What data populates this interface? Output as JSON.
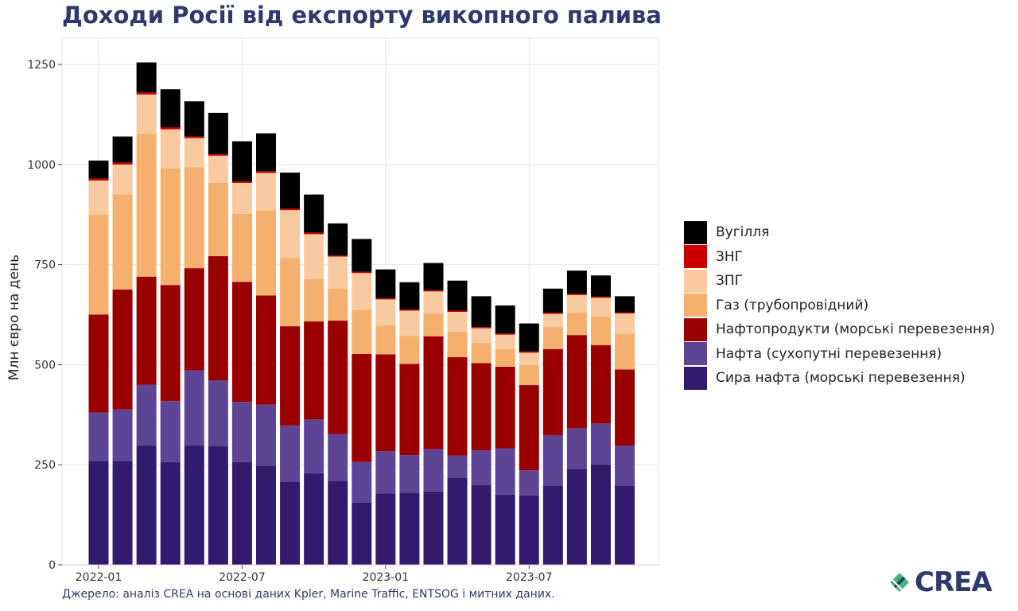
{
  "page": {
    "title": "Доходи Росії від експорту викопного палива",
    "source": "Джерело: аналіз CREA на основі даних Kpler, Marine Traffic, ENTSOG і митних даних.",
    "logo_text": "CREA"
  },
  "colors": {
    "title": "#2d3a6e",
    "grid": "#e6e6e6",
    "logo_green": "#3fb87a",
    "logo_navy": "#2d3a6e"
  },
  "chart_data": {
    "type": "bar",
    "stacked": true,
    "ylabel": "Млн євро на день",
    "xlabel": "",
    "ylim": [
      0,
      1250
    ],
    "yticks": [
      0,
      250,
      500,
      750,
      1000,
      1250
    ],
    "xtick_labels": [
      "2022-01",
      "2022-07",
      "2023-01",
      "2023-07"
    ],
    "xtick_months": [
      1,
      7,
      13,
      19
    ],
    "grid": true,
    "legend_position": "right",
    "categories": [
      "2022-01",
      "2022-02",
      "2022-03",
      "2022-04",
      "2022-05",
      "2022-06",
      "2022-07",
      "2022-08",
      "2022-09",
      "2022-10",
      "2022-11",
      "2022-12",
      "2023-01",
      "2023-02",
      "2023-03",
      "2023-04",
      "2023-05",
      "2023-06",
      "2023-07",
      "2023-08",
      "2023-09",
      "2023-10",
      "2023-11"
    ],
    "series": [
      {
        "name": "Сира нафта (морські перевезення)",
        "color": "#341a6e",
        "values": [
          260,
          260,
          298,
          257,
          298,
          296,
          257,
          248,
          208,
          229,
          210,
          155,
          178,
          180,
          183,
          218,
          200,
          175,
          173,
          198,
          240,
          251,
          198
        ]
      },
      {
        "name": "Нафта (сухопутні перевезення)",
        "color": "#5e4494",
        "values": [
          120,
          128,
          152,
          152,
          188,
          165,
          150,
          152,
          140,
          134,
          117,
          102,
          106,
          94,
          106,
          55,
          86,
          116,
          63,
          126,
          101,
          102,
          100
        ]
      },
      {
        "name": "Нафтопродукти (морські перевезення)",
        "color": "#9b0000",
        "values": [
          245,
          300,
          270,
          290,
          255,
          310,
          300,
          273,
          248,
          245,
          283,
          270,
          242,
          228,
          282,
          246,
          218,
          204,
          213,
          215,
          233,
          196,
          190
        ]
      },
      {
        "name": "Газ (трубопровідний)",
        "color": "#f5b06e",
        "values": [
          250,
          237,
          357,
          292,
          252,
          183,
          170,
          213,
          170,
          106,
          80,
          110,
          72,
          70,
          57,
          63,
          50,
          44,
          50,
          55,
          56,
          71,
          90
        ]
      },
      {
        "name": "ЗПГ",
        "color": "#f9c9a0",
        "values": [
          85,
          75,
          98,
          97,
          73,
          68,
          77,
          93,
          120,
          112,
          80,
          92,
          65,
          63,
          55,
          50,
          37,
          36,
          31,
          33,
          44,
          47,
          50
        ]
      },
      {
        "name": "ЗНГ",
        "color": "#cc0000",
        "values": [
          5,
          5,
          5,
          5,
          4,
          4,
          4,
          4,
          4,
          4,
          3,
          3,
          3,
          3,
          3,
          3,
          3,
          3,
          3,
          3,
          3,
          3,
          3
        ]
      },
      {
        "name": "Вугілля",
        "color": "#000000",
        "values": [
          45,
          65,
          75,
          95,
          88,
          103,
          100,
          95,
          90,
          95,
          80,
          82,
          72,
          68,
          68,
          75,
          77,
          70,
          70,
          60,
          58,
          53,
          40
        ]
      }
    ]
  }
}
